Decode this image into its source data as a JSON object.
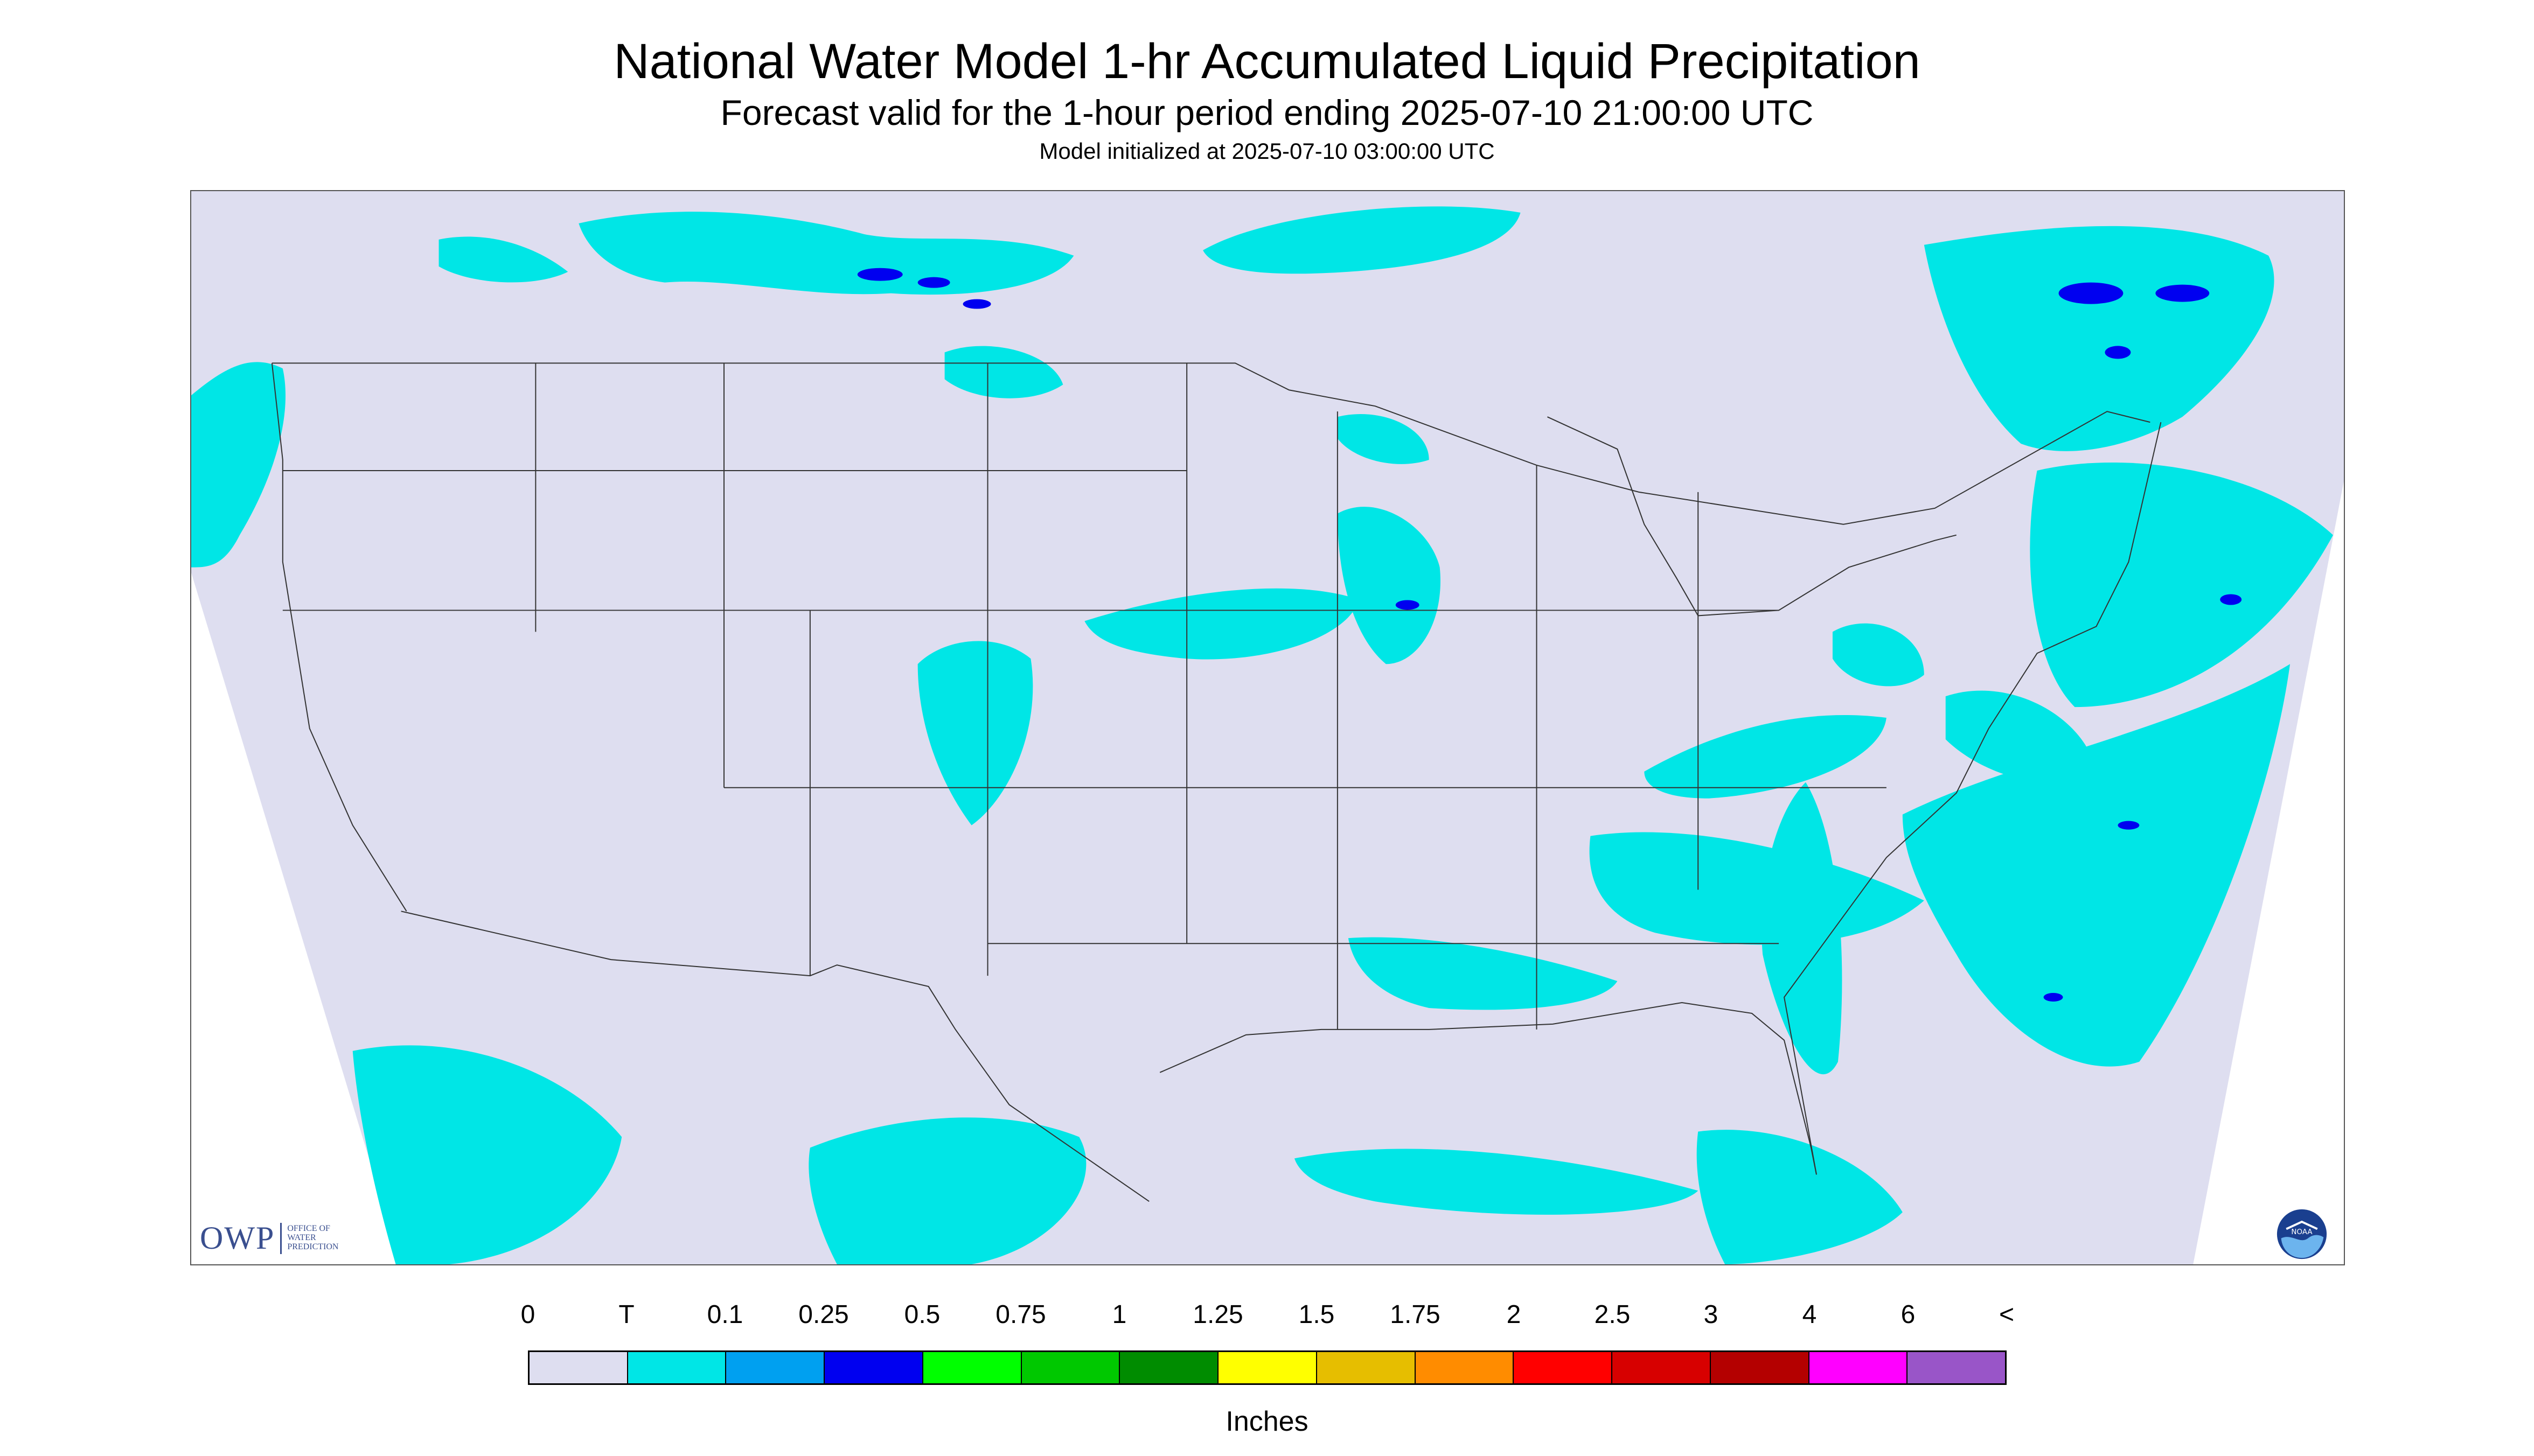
{
  "header": {
    "title": "National Water Model 1-hr Accumulated Liquid Precipitation",
    "subtitle": "Forecast valid for the 1-hour period ending 2025-07-10 21:00:00 UTC",
    "init": "Model initialized at 2025-07-10 03:00:00 UTC"
  },
  "map": {
    "background_color": "#ffffff",
    "land_color": "#dedef0",
    "boundary_color": "#333333",
    "trace_color": "#00e6e6"
  },
  "logos": {
    "owp_mark": "OWP",
    "owp_text": "OFFICE OF\nWATER\nPREDICTION",
    "noaa_text": "NOAA"
  },
  "legend": {
    "labels": [
      "0",
      "T",
      "0.1",
      "0.25",
      "0.5",
      "0.75",
      "1",
      "1.25",
      "1.5",
      "1.75",
      "2",
      "2.5",
      "3",
      "4",
      "6",
      "<"
    ],
    "colors": [
      "#dedef0",
      "#00e6e6",
      "#00a0f0",
      "#0000f0",
      "#00ff00",
      "#00c800",
      "#008c00",
      "#ffff00",
      "#e6be00",
      "#ff8c00",
      "#ff0000",
      "#d70000",
      "#b40000",
      "#ff00ff",
      "#9955c8"
    ],
    "units": "Inches"
  }
}
